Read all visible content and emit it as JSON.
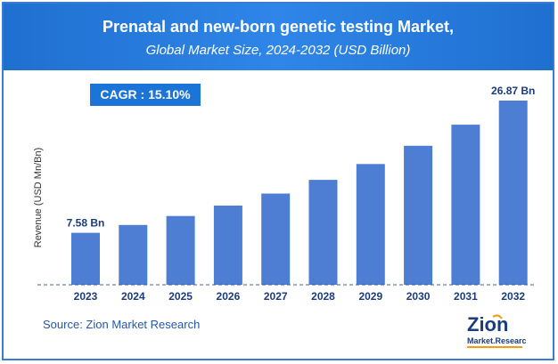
{
  "header": {
    "title": "Prenatal and new-born genetic testing Market,",
    "subtitle": "Global Market Size, 2024-2032 (USD Billion)"
  },
  "cagr_label": "CAGR :  15.10%",
  "source": "Source: Zion Market Research",
  "logo": {
    "main": "Zion",
    "sub": "Market.Research",
    "icon": "zion-logo-icon"
  },
  "colors": {
    "header": "#1f6fd0",
    "bar": "#4e7ed4",
    "cagr_bg": "#1b74d8",
    "border": "#3c7bd4"
  },
  "chart_data": {
    "type": "bar",
    "title": "Prenatal and new-born genetic testing Market,",
    "subtitle": "Global Market Size, 2024-2032 (USD Billion)",
    "xlabel": "",
    "ylabel": "Revenue (USD Mn/Bn)",
    "categories": [
      "2023",
      "2024",
      "2025",
      "2026",
      "2027",
      "2028",
      "2029",
      "2030",
      "2031",
      "2032"
    ],
    "values": [
      7.58,
      8.72,
      10.04,
      11.55,
      13.3,
      15.31,
      17.62,
      20.28,
      23.35,
      26.87
    ],
    "data_labels": [
      {
        "index": 0,
        "text": "7.58 Bn"
      },
      {
        "index": 9,
        "text": "26.87 Bn"
      }
    ],
    "ylim": [
      0,
      27
    ],
    "grid": false,
    "legend": "none"
  }
}
